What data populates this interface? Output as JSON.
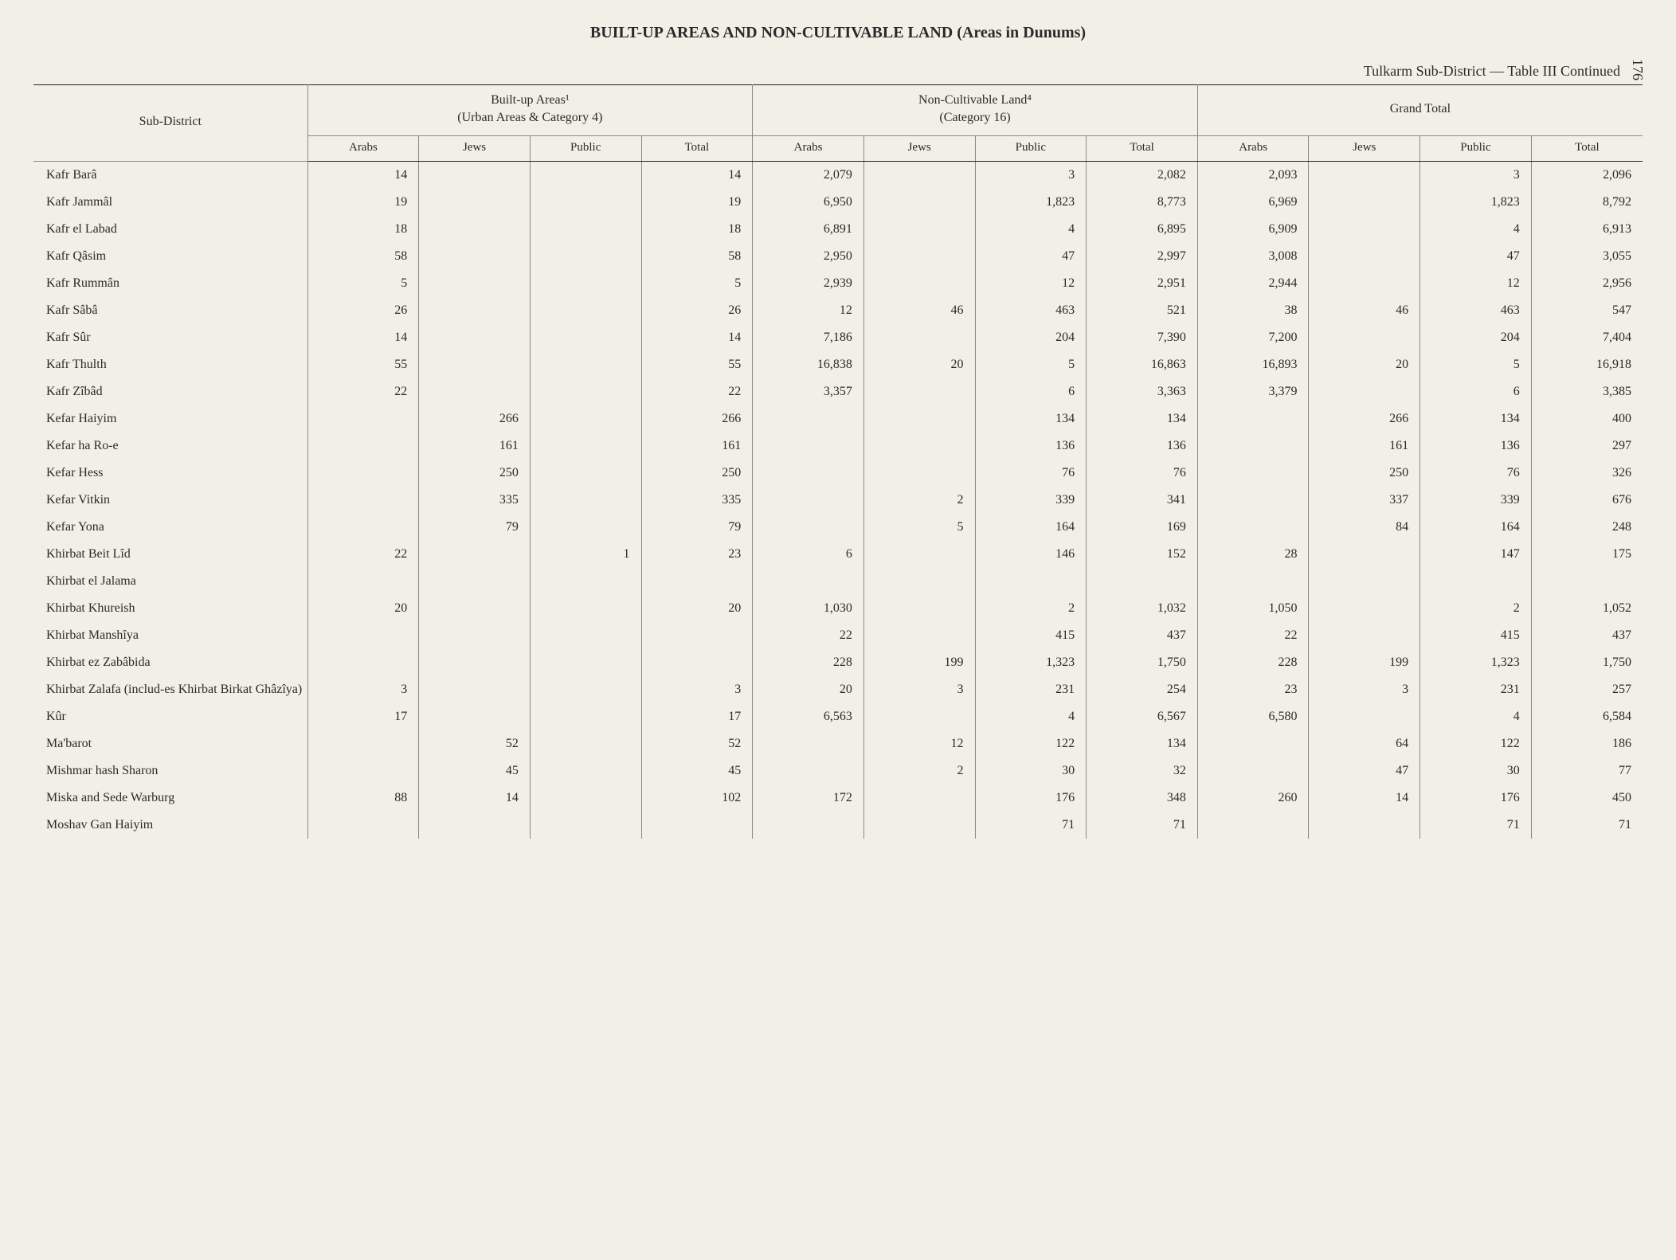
{
  "title": "BUILT-UP AREAS AND NON-CULTIVABLE LAND (Areas in Dunums)",
  "subtitle": "Tulkarm Sub-District — Table III Continued",
  "page_number": "176",
  "background_color": "#f2f0e6",
  "text_color": "#2a2a2a",
  "headers": {
    "subdistrict": "Sub-District",
    "group1_line1": "Built-up Areas¹",
    "group1_line2": "(Urban Areas & Category 4)",
    "group2_line1": "Non-Cultivable Land⁴",
    "group2_line2": "(Category 16)",
    "group3_line1": "Grand Total",
    "cols": [
      "Arabs",
      "Jews",
      "Public",
      "Total",
      "Arabs",
      "Jews",
      "Public",
      "Total",
      "Arabs",
      "Jews",
      "Public",
      "Total"
    ]
  },
  "rows": [
    {
      "name": "Kafr Barâ",
      "c": [
        "14",
        "",
        "",
        "14",
        "2,079",
        "",
        "3",
        "2,082",
        "2,093",
        "",
        "3",
        "2,096"
      ]
    },
    {
      "name": "Kafr Jammâl",
      "c": [
        "19",
        "",
        "",
        "19",
        "6,950",
        "",
        "1,823",
        "8,773",
        "6,969",
        "",
        "1,823",
        "8,792"
      ]
    },
    {
      "name": "Kafr el Labad",
      "c": [
        "18",
        "",
        "",
        "18",
        "6,891",
        "",
        "4",
        "6,895",
        "6,909",
        "",
        "4",
        "6,913"
      ]
    },
    {
      "name": "Kafr Qâsim",
      "c": [
        "58",
        "",
        "",
        "58",
        "2,950",
        "",
        "47",
        "2,997",
        "3,008",
        "",
        "47",
        "3,055"
      ]
    },
    {
      "name": "Kafr Rummân",
      "c": [
        "5",
        "",
        "",
        "5",
        "2,939",
        "",
        "12",
        "2,951",
        "2,944",
        "",
        "12",
        "2,956"
      ]
    },
    {
      "name": "Kafr Sâbâ",
      "c": [
        "26",
        "",
        "",
        "26",
        "12",
        "46",
        "463",
        "521",
        "38",
        "46",
        "463",
        "547"
      ]
    },
    {
      "name": "Kafr Sûr",
      "c": [
        "14",
        "",
        "",
        "14",
        "7,186",
        "",
        "204",
        "7,390",
        "7,200",
        "",
        "204",
        "7,404"
      ]
    },
    {
      "name": "Kafr Thulth",
      "c": [
        "55",
        "",
        "",
        "55",
        "16,838",
        "20",
        "5",
        "16,863",
        "16,893",
        "20",
        "5",
        "16,918"
      ]
    },
    {
      "name": "Kafr Zîbâd",
      "c": [
        "22",
        "",
        "",
        "22",
        "3,357",
        "",
        "6",
        "3,363",
        "3,379",
        "",
        "6",
        "3,385"
      ]
    },
    {
      "name": "Kefar Haiyim",
      "c": [
        "",
        "266",
        "",
        "266",
        "",
        "",
        "134",
        "134",
        "",
        "266",
        "134",
        "400"
      ]
    },
    {
      "name": "Kefar ha Ro-e",
      "c": [
        "",
        "161",
        "",
        "161",
        "",
        "",
        "136",
        "136",
        "",
        "161",
        "136",
        "297"
      ]
    },
    {
      "name": "Kefar Hess",
      "c": [
        "",
        "250",
        "",
        "250",
        "",
        "",
        "76",
        "76",
        "",
        "250",
        "76",
        "326"
      ]
    },
    {
      "name": "Kefar Vitkin",
      "c": [
        "",
        "335",
        "",
        "335",
        "",
        "2",
        "339",
        "341",
        "",
        "337",
        "339",
        "676"
      ]
    },
    {
      "name": "Kefar Yona",
      "c": [
        "",
        "79",
        "",
        "79",
        "",
        "5",
        "164",
        "169",
        "",
        "84",
        "164",
        "248"
      ]
    },
    {
      "name": "Khirbat Beit Lîd",
      "c": [
        "22",
        "",
        "1",
        "23",
        "6",
        "",
        "146",
        "152",
        "28",
        "",
        "147",
        "175"
      ]
    },
    {
      "name": "Khirbat el Jalama",
      "c": [
        "",
        "",
        "",
        "",
        "",
        "",
        "",
        "",
        "",
        "",
        "",
        ""
      ]
    },
    {
      "name": "Khirbat Khureish",
      "c": [
        "20",
        "",
        "",
        "20",
        "1,030",
        "",
        "2",
        "1,032",
        "1,050",
        "",
        "2",
        "1,052"
      ]
    },
    {
      "name": "Khirbat Manshîya",
      "c": [
        "",
        "",
        "",
        "",
        "22",
        "",
        "415",
        "437",
        "22",
        "",
        "415",
        "437"
      ]
    },
    {
      "name": "Khirbat ez Zabâbida",
      "c": [
        "",
        "",
        "",
        "",
        "228",
        "199",
        "1,323",
        "1,750",
        "228",
        "199",
        "1,323",
        "1,750"
      ]
    },
    {
      "name": "Khirbat Zalafa (includ-­es Khirbat Birkat Ghâzîya)",
      "c": [
        "3",
        "",
        "",
        "3",
        "20",
        "3",
        "231",
        "254",
        "23",
        "3",
        "231",
        "257"
      ]
    },
    {
      "name": "Kûr",
      "c": [
        "17",
        "",
        "",
        "17",
        "6,563",
        "",
        "4",
        "6,567",
        "6,580",
        "",
        "4",
        "6,584"
      ]
    },
    {
      "name": "Ma'barot",
      "c": [
        "",
        "52",
        "",
        "52",
        "",
        "12",
        "122",
        "134",
        "",
        "64",
        "122",
        "186"
      ]
    },
    {
      "name": "Mishmar hash Sharon",
      "c": [
        "",
        "45",
        "",
        "45",
        "",
        "2",
        "30",
        "32",
        "",
        "47",
        "30",
        "77"
      ]
    },
    {
      "name": "Miska and Sede Warburg",
      "c": [
        "88",
        "14",
        "",
        "102",
        "172",
        "",
        "176",
        "348",
        "260",
        "14",
        "176",
        "450"
      ]
    },
    {
      "name": "Moshav Gan Haiyim",
      "c": [
        "",
        "",
        "",
        "",
        "",
        "",
        "71",
        "71",
        "",
        "",
        "71",
        "71"
      ]
    }
  ]
}
